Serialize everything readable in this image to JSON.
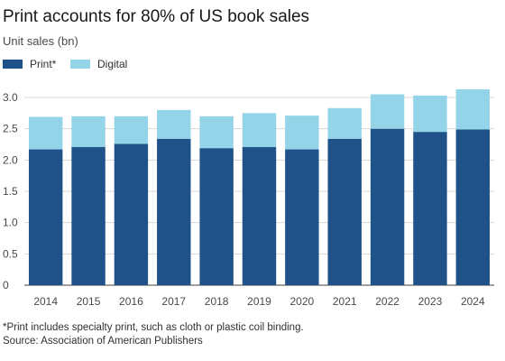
{
  "colors": {
    "print": "#1e5288",
    "digital": "#93d4e9",
    "grid": "#dcd7d1",
    "axis": "#6b6460"
  },
  "chart_data": {
    "type": "bar",
    "stacked": true,
    "title": "Print accounts for 80% of US book sales",
    "subtitle": "Unit sales (bn)",
    "categories": [
      "2014",
      "2015",
      "2016",
      "2017",
      "2018",
      "2019",
      "2020",
      "2021",
      "2022",
      "2023",
      "2024"
    ],
    "series": [
      {
        "name": "Print*",
        "values": [
          2.17,
          2.21,
          2.26,
          2.34,
          2.19,
          2.21,
          2.17,
          2.34,
          2.5,
          2.45,
          2.49
        ]
      },
      {
        "name": "Digital",
        "values": [
          0.52,
          0.49,
          0.44,
          0.46,
          0.51,
          0.54,
          0.54,
          0.49,
          0.55,
          0.58,
          0.64
        ]
      }
    ],
    "ylim": [
      0,
      3.0
    ],
    "yticks": [
      "0",
      "0.5",
      "1.0",
      "1.5",
      "2.0",
      "2.5",
      "3.0"
    ],
    "grid": true,
    "legend_position": "top-left",
    "footnote": "*Print includes specialty print, such as cloth or plastic coil binding.",
    "source": "Source: Association of American Publishers"
  }
}
